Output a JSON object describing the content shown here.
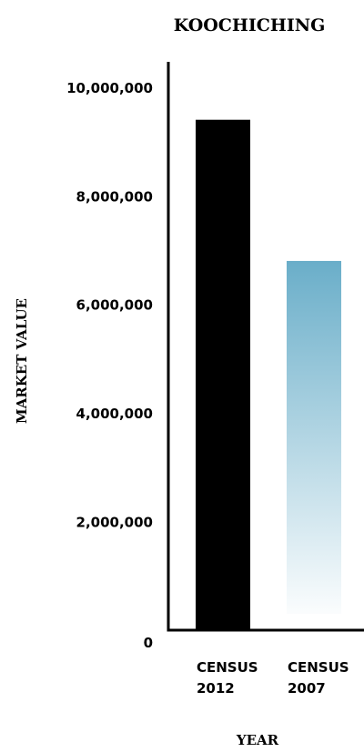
{
  "chart_data": {
    "type": "bar",
    "title": "KOOCHICHING",
    "xlabel": "YEAR",
    "ylabel": "MARKET VALUE",
    "categories": [
      "CENSUS 2012",
      "CENSUS 2007"
    ],
    "category_lines": [
      [
        "CENSUS",
        "2012"
      ],
      [
        "CENSUS",
        "2007"
      ]
    ],
    "values": [
      9400000,
      6800000
    ],
    "ylim": [
      0,
      10400000
    ],
    "yticks": [
      0,
      2000000,
      4000000,
      6000000,
      8000000,
      10000000
    ],
    "ytick_labels": [
      "0",
      "2,000,000",
      "4,000,000",
      "6,000,000",
      "8,000,000",
      "10,000,000"
    ],
    "colors": [
      "#000000",
      "#6aaec9"
    ],
    "fill_styles": [
      "solid",
      "gradient-fade"
    ],
    "grid": false,
    "legend": "none"
  }
}
